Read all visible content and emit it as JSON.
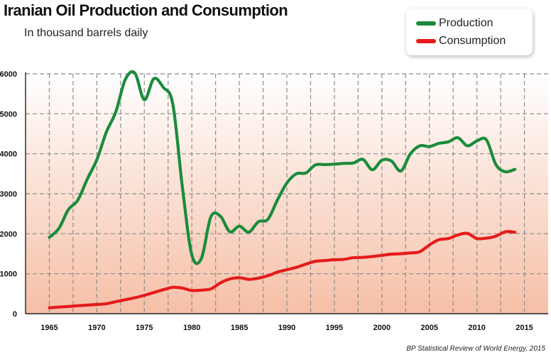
{
  "chart_data": {
    "type": "line",
    "title": "Iranian Oil Production and Consumption",
    "subtitle": "In thousand barrels daily",
    "source": "BP  Statistical Review of World Energy, 2015",
    "xlim": [
      1962.5,
      2017.5
    ],
    "ylim": [
      0,
      6000
    ],
    "x_ticks": [
      "1965",
      "1970",
      "1975",
      "1980",
      "1985",
      "1990",
      "1995",
      "2000",
      "2005",
      "2010",
      "2015"
    ],
    "y_ticks": [
      "0",
      "1000",
      "2000",
      "3000",
      "4000",
      "5000",
      "6000"
    ],
    "grid": true,
    "legend_position": "top-right",
    "series": [
      {
        "name": "Production",
        "color": "#1a8c3c",
        "x": [
          1965,
          1966,
          1967,
          1968,
          1969,
          1970,
          1971,
          1972,
          1973,
          1974,
          1975,
          1976,
          1977,
          1978,
          1979,
          1980,
          1981,
          1982,
          1983,
          1984,
          1985,
          1986,
          1987,
          1988,
          1989,
          1990,
          1991,
          1992,
          1993,
          1994,
          1995,
          1996,
          1997,
          1998,
          1999,
          2000,
          2001,
          2002,
          2003,
          2004,
          2005,
          2006,
          2007,
          2008,
          2009,
          2010,
          2011,
          2012,
          2013,
          2014
        ],
        "values": [
          1910,
          2130,
          2600,
          2840,
          3370,
          3850,
          4540,
          5050,
          5860,
          6020,
          5350,
          5880,
          5660,
          5240,
          3170,
          1470,
          1380,
          2420,
          2440,
          2050,
          2190,
          2040,
          2300,
          2360,
          2840,
          3270,
          3500,
          3520,
          3720,
          3730,
          3740,
          3760,
          3770,
          3860,
          3600,
          3840,
          3820,
          3570,
          4000,
          4200,
          4180,
          4260,
          4300,
          4400,
          4200,
          4320,
          4350,
          3730,
          3550,
          3610
        ]
      },
      {
        "name": "Consumption",
        "color": "#e51b1b",
        "x": [
          1965,
          1966,
          1967,
          1968,
          1969,
          1970,
          1971,
          1972,
          1973,
          1974,
          1975,
          1976,
          1977,
          1978,
          1979,
          1980,
          1981,
          1982,
          1983,
          1984,
          1985,
          1986,
          1987,
          1988,
          1989,
          1990,
          1991,
          1992,
          1993,
          1994,
          1995,
          1996,
          1997,
          1998,
          1999,
          2000,
          2001,
          2002,
          2003,
          2004,
          2005,
          2006,
          2007,
          2008,
          2009,
          2010,
          2011,
          2012,
          2013,
          2014
        ],
        "values": [
          150,
          165,
          180,
          200,
          215,
          230,
          250,
          300,
          350,
          400,
          460,
          530,
          600,
          660,
          640,
          580,
          590,
          620,
          770,
          870,
          900,
          860,
          890,
          950,
          1040,
          1100,
          1160,
          1240,
          1310,
          1330,
          1350,
          1360,
          1400,
          1410,
          1430,
          1460,
          1490,
          1500,
          1520,
          1550,
          1720,
          1850,
          1880,
          1970,
          2010,
          1880,
          1890,
          1940,
          2050,
          2040
        ]
      }
    ]
  }
}
